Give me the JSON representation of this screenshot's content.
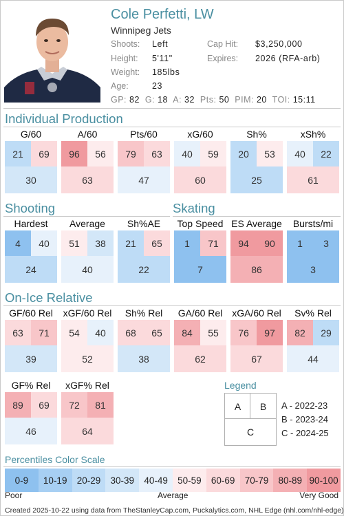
{
  "player": {
    "name": "Cole Perfetti, LW",
    "team": "Winnipeg Jets"
  },
  "info": {
    "shoots_label": "Shoots:",
    "shoots": "Left",
    "height_label": "Height:",
    "height": "5'11\"",
    "weight_label": "Weight:",
    "weight": "185lbs",
    "age_label": "Age:",
    "age": "23",
    "cap_label": "Cap Hit:",
    "cap": "$3,250,000",
    "expires_label": "Expires:",
    "expires": "2026 (RFA-arb)"
  },
  "stats": {
    "gp_label": "GP:",
    "gp": "82",
    "g_label": "G:",
    "g": "18",
    "a_label": "A:",
    "a": "32",
    "pts_label": "Pts:",
    "pts": "50",
    "pim_label": "PIM:",
    "pim": "20",
    "toi_label": "TOI:",
    "toi": "15:11"
  },
  "sections": {
    "individual": "Individual Production",
    "shooting": "Shooting",
    "skating": "Skating",
    "onice": "On-Ice Relative"
  },
  "metrics": [
    {
      "label": "G/60",
      "a": 21,
      "b": 69,
      "c": 30
    },
    {
      "label": "A/60",
      "a": 96,
      "b": 56,
      "c": 63
    },
    {
      "label": "Pts/60",
      "a": 79,
      "b": 63,
      "c": 47
    },
    {
      "label": "xG/60",
      "a": 40,
      "b": 59,
      "c": 60
    },
    {
      "label": "Sh%",
      "a": 20,
      "b": 53,
      "c": 25
    },
    {
      "label": "xSh%",
      "a": 40,
      "b": 22,
      "c": 61
    },
    {
      "label": "Hardest",
      "a": 4,
      "b": 40,
      "c": 24
    },
    {
      "label": "Average",
      "a": 51,
      "b": 38,
      "c": 40
    },
    {
      "label": "Sh%AE",
      "a": 21,
      "b": 65,
      "c": 22
    },
    {
      "label": "Top Speed",
      "a": 1,
      "b": 71,
      "c": 7
    },
    {
      "label": "ES Average",
      "a": 94,
      "b": 90,
      "c": 86
    },
    {
      "label": "Bursts/mi",
      "a": 1,
      "b": 3,
      "c": 3
    },
    {
      "label": "GF/60 Rel",
      "a": 63,
      "b": 71,
      "c": 39
    },
    {
      "label": "xGF/60 Rel",
      "a": 54,
      "b": 40,
      "c": 52
    },
    {
      "label": "Sh% Rel",
      "a": 68,
      "b": 65,
      "c": 38
    },
    {
      "label": "GA/60 Rel",
      "a": 84,
      "b": 55,
      "c": 62
    },
    {
      "label": "xGA/60 Rel",
      "a": 76,
      "b": 97,
      "c": 67
    },
    {
      "label": "Sv% Rel",
      "a": 82,
      "b": 29,
      "c": 44
    },
    {
      "label": "GF% Rel",
      "a": 89,
      "b": 69,
      "c": 46
    },
    {
      "label": "xGF% Rel",
      "a": 72,
      "b": 81,
      "c": 64
    }
  ],
  "legend": {
    "title": "Legend",
    "box_a": "A",
    "box_b": "B",
    "box_c": "C",
    "line_a": "A - 2022-23",
    "line_b": "B - 2023-24",
    "line_c": "C - 2024-25"
  },
  "scale": {
    "title": "Percentiles Color Scale",
    "segments": [
      "0-9",
      "10-19",
      "20-29",
      "30-39",
      "40-49",
      "50-59",
      "60-69",
      "70-79",
      "80-89",
      "90-100"
    ],
    "colors": [
      "#8ec1ef",
      "#a7cff3",
      "#bedcf6",
      "#d3e7f8",
      "#e7f1fb",
      "#fdeced",
      "#fbdadc",
      "#f8c6c9",
      "#f4b0b4",
      "#f09a9f"
    ],
    "poor": "Poor",
    "average": "Average",
    "very_good": "Very Good"
  },
  "footer": "Created 2025-10-22 using data from TheStanleyCap.com, Puckalytics.com, NHL Edge (nhl.com/nhl-edge)."
}
